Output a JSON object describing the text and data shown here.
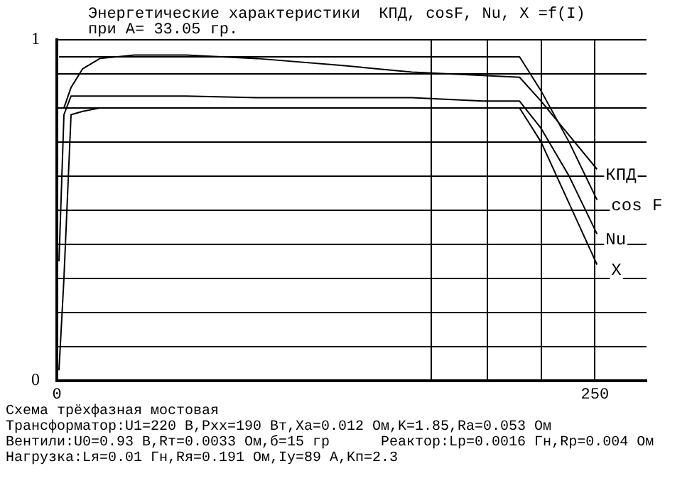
{
  "chart_data": {
    "type": "line",
    "title": "Энергетические характеристики  КПД, cosF, Nu, X =f(I)",
    "subtitle": "при A= 33.05 гр.",
    "x": [
      1,
      3.3,
      6.6,
      12,
      20,
      36,
      60,
      93,
      132,
      165,
      198,
      215,
      225,
      238,
      251
    ],
    "xlim": [
      0,
      274
    ],
    "xticks": [
      0,
      {
        "value": 174,
        "label": null
      },
      {
        "value": 200,
        "label": null
      },
      {
        "value": 225,
        "label": null
      },
      250
    ],
    "ylim": [
      0,
      1
    ],
    "yticks": [
      0,
      {
        "value": 0.1,
        "label": null
      },
      {
        "value": 0.2,
        "label": null
      },
      {
        "value": 0.3,
        "label": null
      },
      {
        "value": 0.4,
        "label": null
      },
      {
        "value": 0.5,
        "label": null
      },
      {
        "value": 0.6,
        "label": null
      },
      {
        "value": 0.7,
        "label": null
      },
      {
        "value": 0.8,
        "label": null
      },
      {
        "value": 0.9,
        "label": null
      },
      1
    ],
    "grid": true,
    "legend": false,
    "marker": "none",
    "line_style": "solid",
    "series": [
      {
        "name": "КПД",
        "color": "#000000",
        "values": [
          null,
          0.8,
          0.86,
          0.915,
          0.945,
          0.955,
          0.955,
          0.945,
          0.925,
          0.905,
          0.895,
          0.89,
          0.82,
          0.72,
          0.62
        ]
      },
      {
        "name": "cos F",
        "color": "#000000",
        "values": [
          0.95,
          0.95,
          0.95,
          0.95,
          0.95,
          0.95,
          0.95,
          0.95,
          0.95,
          0.95,
          0.95,
          0.95,
          0.85,
          0.7,
          0.53
        ]
      },
      {
        "name": "Nu",
        "color": "#000000",
        "values": [
          0.35,
          0.78,
          0.835,
          0.835,
          0.835,
          0.835,
          0.835,
          0.83,
          0.83,
          0.83,
          0.82,
          0.82,
          0.74,
          0.6,
          0.43
        ]
      },
      {
        "name": "X",
        "color": "#000000",
        "values": [
          0.03,
          0.3,
          0.78,
          0.79,
          0.8,
          0.8,
          0.8,
          0.8,
          0.8,
          0.8,
          0.8,
          0.8,
          0.7,
          0.52,
          0.34
        ]
      }
    ],
    "annotations": [
      "Схема трёхфазная мостовая",
      "Трансформатор:U1=220 В,Pхх=190 Вт,Xa=0.012 Ом,K=1.85,Ra=0.053 Ом",
      "Вентили:U0=0.93 В,Rт=0.0033 Ом,б=15 гр      Реактор:Lр=0.0016 Гн,Rр=0.004 Ом",
      "Нагрузка:Lя=0.01 Гн,Rя=0.191 Ом,Iу=89 А,Kп=2.3"
    ]
  }
}
